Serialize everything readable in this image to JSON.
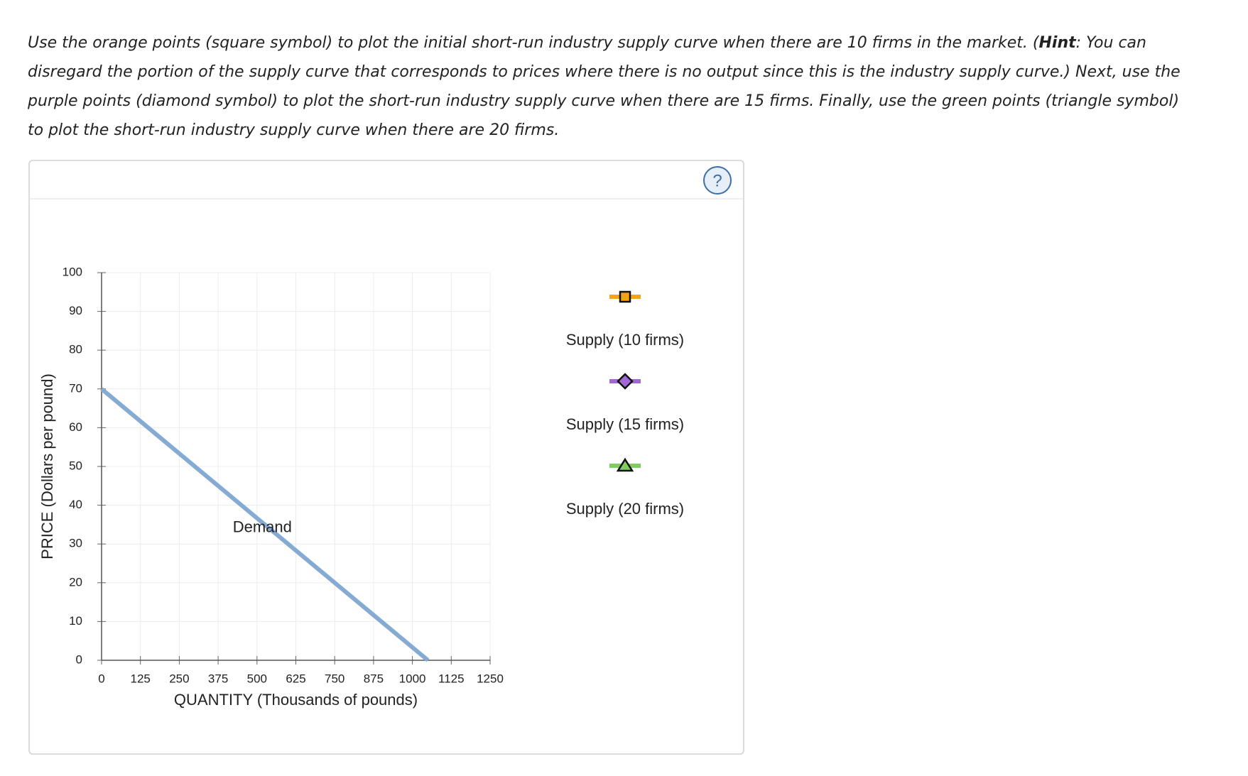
{
  "instructions": {
    "before": "Use the orange points (square symbol) to plot the initial short-run industry supply curve when there are 10 firms in the market. (",
    "bold": "Hint",
    "after": ": You can disregard the portion of the supply curve that corresponds to prices where there is no output since this is the industry supply curve.) Next, use the purple points (diamond symbol) to plot the short-run industry supply curve when there are 15 firms. Finally, use the green points (triangle symbol) to plot the short-run industry supply curve when there are 20 firms."
  },
  "help": "?",
  "chart_data": {
    "type": "line",
    "xlabel": "QUANTITY (Thousands of pounds)",
    "ylabel": "PRICE (Dollars per pound)",
    "xlim": [
      0,
      1250
    ],
    "xticks": [
      0,
      125,
      250,
      375,
      500,
      625,
      750,
      875,
      1000,
      1125,
      1250
    ],
    "ylim": [
      0,
      100
    ],
    "yticks": [
      0,
      10,
      20,
      30,
      40,
      50,
      60,
      70,
      80,
      90,
      100
    ],
    "grid": true,
    "series": [
      {
        "name": "Demand",
        "color": "#86abd3",
        "x": [
          0,
          1050
        ],
        "values": [
          70,
          0
        ]
      },
      {
        "name": "Supply (10 firms)",
        "color": "#f5a21b",
        "symbol": "square",
        "x": [],
        "values": []
      },
      {
        "name": "Supply (15 firms)",
        "color": "#a068d4",
        "symbol": "diamond",
        "x": [],
        "values": []
      },
      {
        "name": "Supply (20 firms)",
        "color": "#7fcc60",
        "symbol": "triangle",
        "x": [],
        "values": []
      }
    ]
  }
}
